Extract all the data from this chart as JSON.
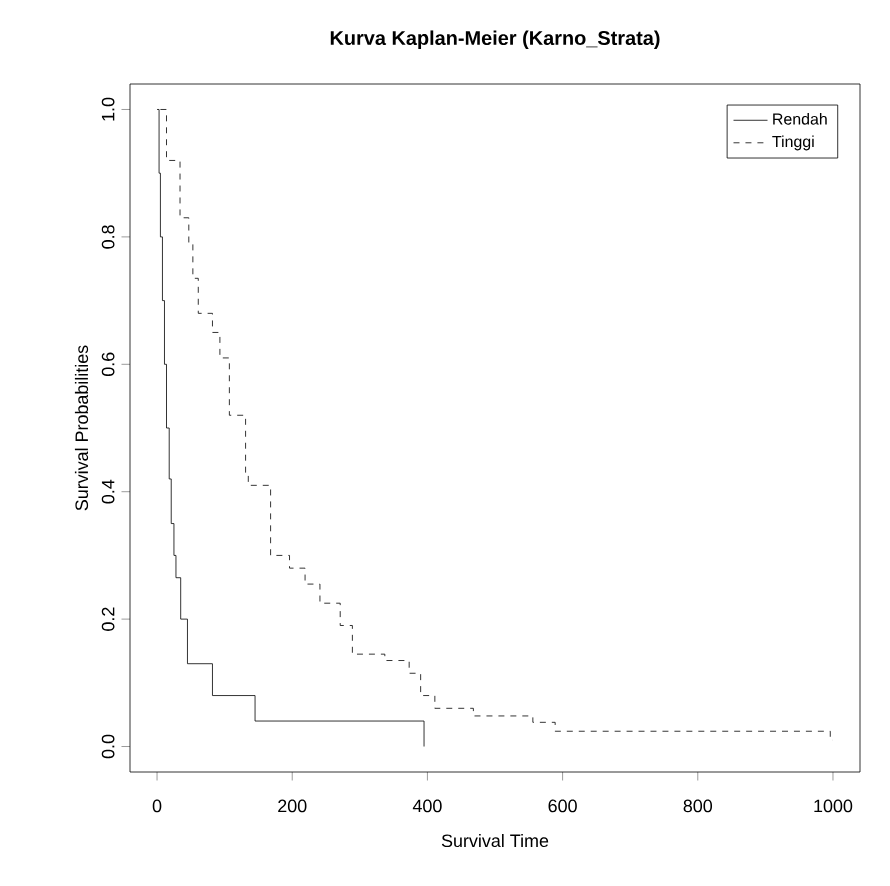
{
  "chart_data": {
    "type": "step",
    "title": "Kurva Kaplan-Meier (Karno_Strata)",
    "xlabel": "Survival Time",
    "ylabel": "Survival Probabilities",
    "xlim": [
      -40,
      1040
    ],
    "ylim": [
      -0.04,
      1.04
    ],
    "xticks": [
      0,
      200,
      400,
      600,
      800,
      1000
    ],
    "yticks": [
      {
        "value": 0,
        "label": "0.0"
      },
      {
        "value": 0.2,
        "label": "0.2"
      },
      {
        "value": 0.4,
        "label": "0.4"
      },
      {
        "value": 0.6,
        "label": "0.6"
      },
      {
        "value": 0.8,
        "label": "0.8"
      },
      {
        "value": 1,
        "label": "1.0"
      }
    ],
    "legend": "top right",
    "grid": false,
    "marker": "none",
    "series": [
      {
        "name": "Rendah",
        "color": "#000000",
        "line_style": "solid",
        "x": [
          0,
          3,
          5,
          8,
          11,
          14,
          18,
          21,
          25,
          28,
          35,
          45,
          82,
          145,
          395
        ],
        "values": [
          1,
          0.9,
          0.8,
          0.7,
          0.6,
          0.5,
          0.42,
          0.35,
          0.3,
          0.265,
          0.2,
          0.13,
          0.08,
          0.04,
          0
        ]
      },
      {
        "name": "Tinggi",
        "color": "#000000",
        "line_style": "dashed",
        "x": [
          5,
          14,
          34,
          47,
          53,
          61,
          82,
          93,
          107,
          131,
          135,
          168,
          196,
          219,
          241,
          271,
          289,
          337,
          373,
          390,
          411,
          468,
          556,
          589,
          996,
          1000
        ],
        "values": [
          1,
          0.92,
          0.83,
          0.79,
          0.735,
          0.68,
          0.65,
          0.61,
          0.52,
          0.43,
          0.41,
          0.3,
          0.28,
          0.255,
          0.225,
          0.19,
          0.145,
          0.135,
          0.115,
          0.08,
          0.06,
          0.048,
          0.038,
          0.024,
          0.01,
          0.01
        ]
      }
    ]
  }
}
